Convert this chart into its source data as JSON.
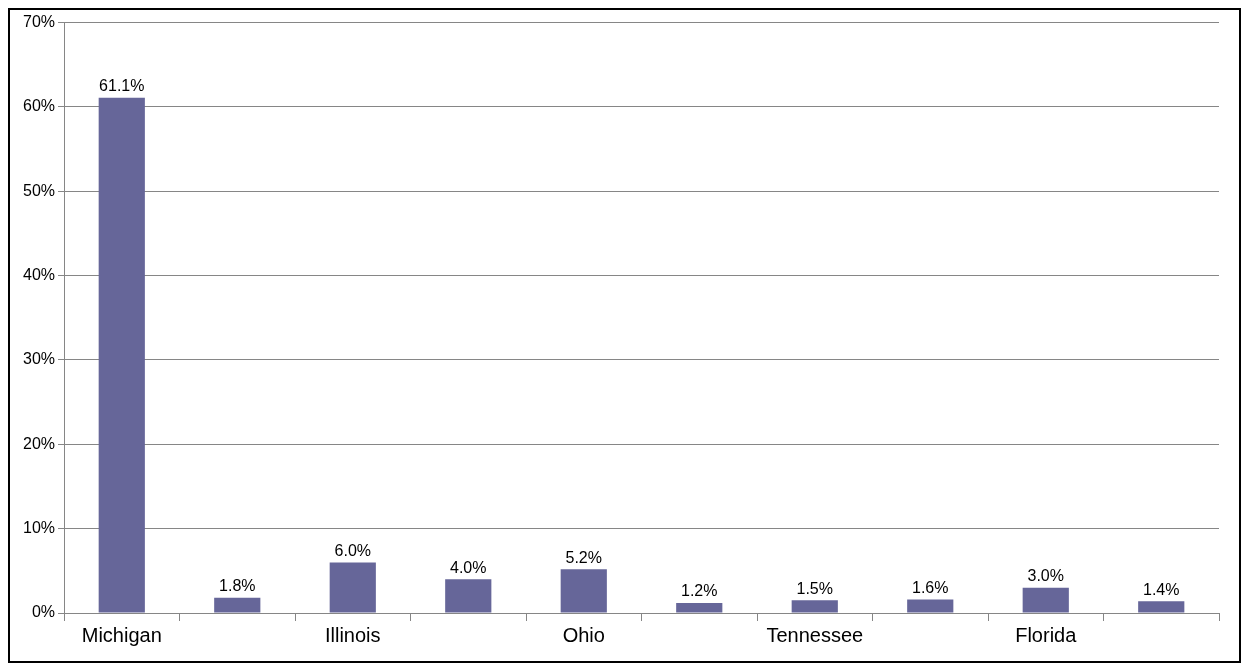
{
  "chart_data": {
    "type": "bar",
    "categories": [
      "Michigan",
      null,
      "Illinois",
      null,
      "Ohio",
      null,
      "Tennessee",
      null,
      "Florida",
      null
    ],
    "values": [
      61.1,
      1.8,
      6.0,
      4.0,
      5.2,
      1.2,
      1.5,
      1.6,
      3.0,
      1.4
    ],
    "value_labels": [
      "61.1%",
      "1.8%",
      "6.0%",
      "4.0%",
      "5.2%",
      "1.2%",
      "1.5%",
      "1.6%",
      "3.0%",
      "1.4%"
    ],
    "color": "#666699",
    "ylim": [
      0,
      70
    ],
    "yticks": [
      {
        "value": 0,
        "label": "0%"
      },
      {
        "value": 10,
        "label": "10%"
      },
      {
        "value": 20,
        "label": "20%"
      },
      {
        "value": 30,
        "label": "30%"
      },
      {
        "value": 40,
        "label": "40%"
      },
      {
        "value": 50,
        "label": "50%"
      },
      {
        "value": 60,
        "label": "60%"
      },
      {
        "value": 70,
        "label": "70%"
      }
    ],
    "grid": "y",
    "legend": false
  }
}
